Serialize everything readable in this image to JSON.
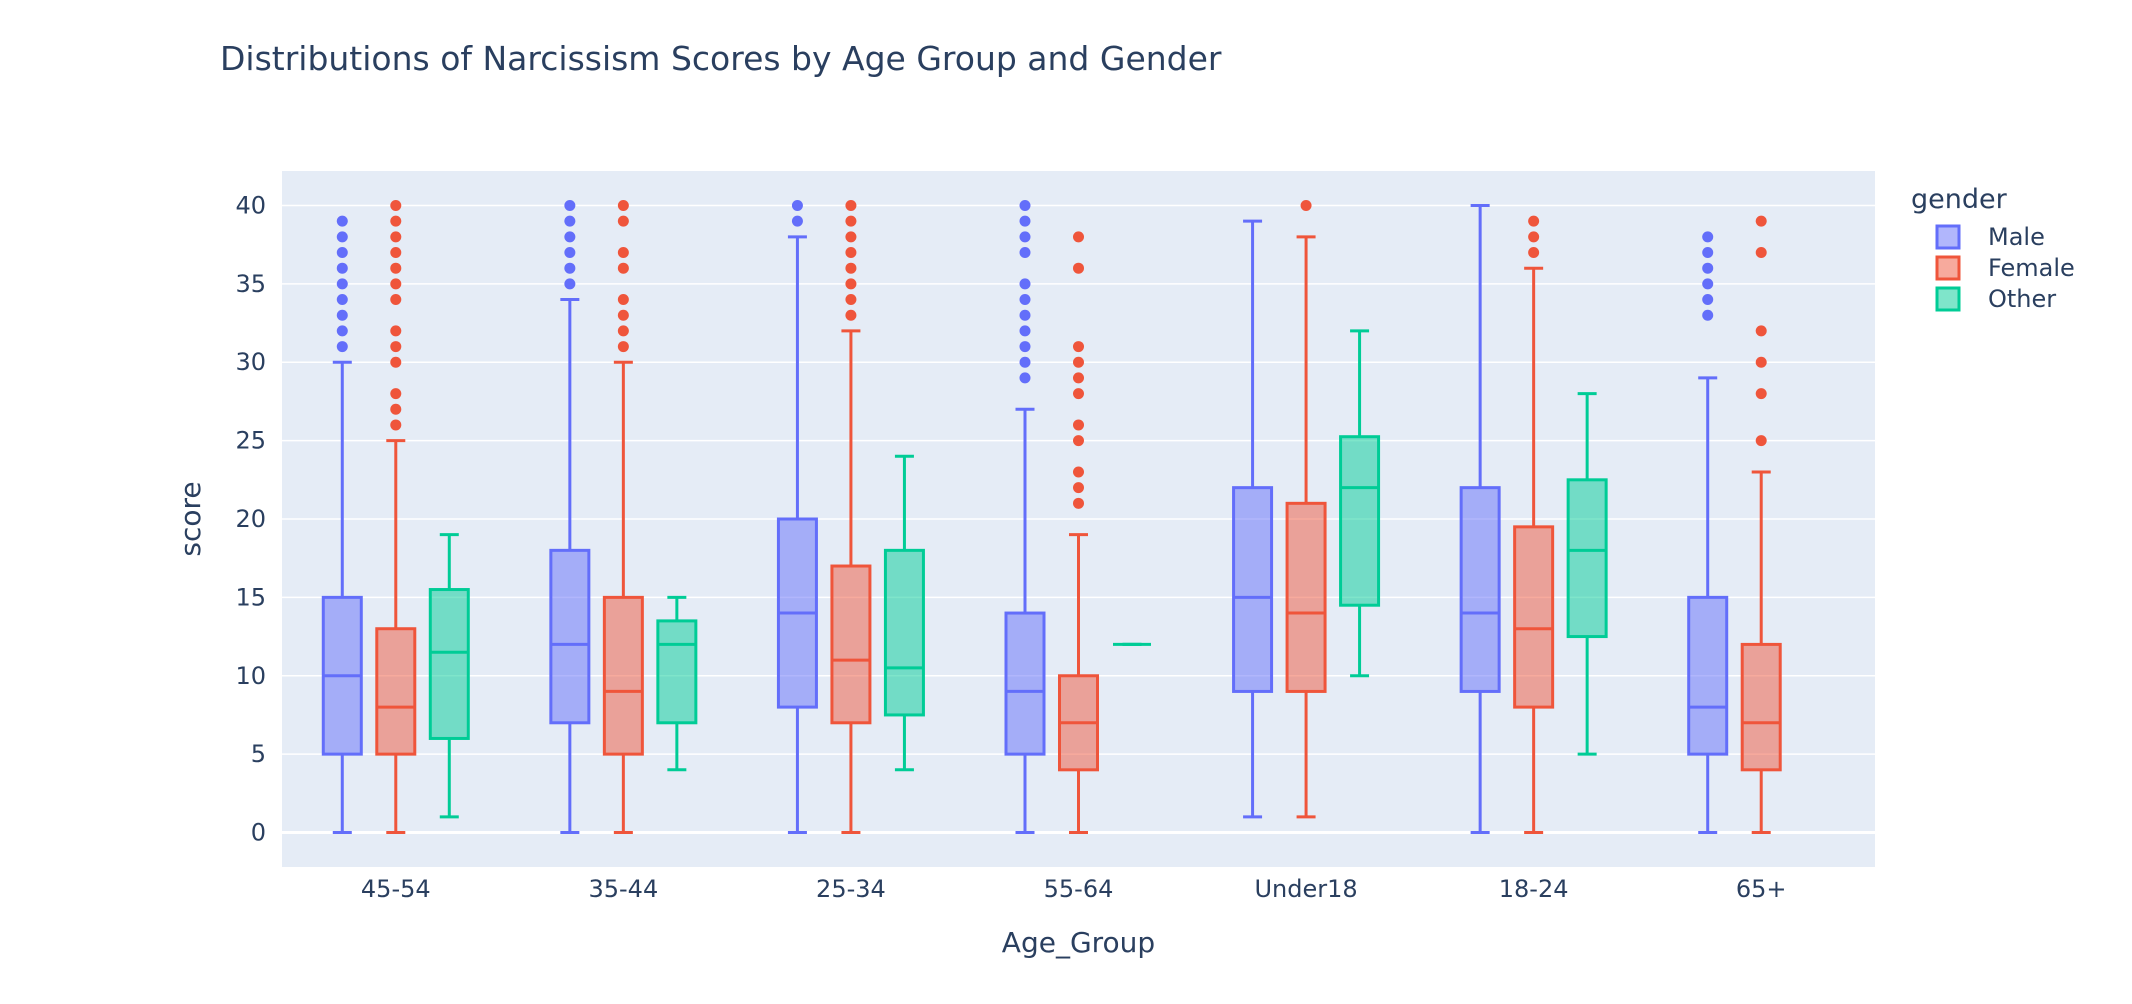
{
  "chart_data": {
    "type": "box",
    "title": "Distributions of Narcissism Scores by Age Group and Gender",
    "xlabel": "Age_Group",
    "ylabel": "score",
    "ylim": [
      -2.2,
      42.2
    ],
    "yticks": [
      0,
      5,
      10,
      15,
      20,
      25,
      30,
      35,
      40
    ],
    "grid": true,
    "legend_title": "gender",
    "legend_position": "right",
    "categories": [
      "45-54",
      "35-44",
      "25-34",
      "55-64",
      "Under18",
      "18-24",
      "65+"
    ],
    "series": [
      {
        "name": "Male",
        "color": "#636efa",
        "boxes": [
          {
            "category": "45-54",
            "lower_fence": 0,
            "q1": 5,
            "median": 10,
            "q3": 15,
            "upper_fence": 30,
            "outliers": [
              31,
              32,
              33,
              34,
              35,
              36,
              37,
              38,
              39
            ]
          },
          {
            "category": "35-44",
            "lower_fence": 0,
            "q1": 7,
            "median": 12,
            "q3": 18,
            "upper_fence": 34,
            "outliers": [
              35,
              36,
              37,
              38,
              39,
              40
            ]
          },
          {
            "category": "25-34",
            "lower_fence": 0,
            "q1": 8,
            "median": 14,
            "q3": 20,
            "upper_fence": 38,
            "outliers": [
              39,
              40
            ]
          },
          {
            "category": "55-64",
            "lower_fence": 0,
            "q1": 5,
            "median": 9,
            "q3": 14,
            "upper_fence": 27,
            "outliers": [
              29,
              30,
              31,
              32,
              33,
              34,
              35,
              37,
              38,
              39,
              40
            ]
          },
          {
            "category": "Under18",
            "lower_fence": 1,
            "q1": 9,
            "median": 15,
            "q3": 22,
            "upper_fence": 39,
            "outliers": []
          },
          {
            "category": "18-24",
            "lower_fence": 0,
            "q1": 9,
            "median": 14,
            "q3": 22,
            "upper_fence": 40,
            "outliers": []
          },
          {
            "category": "65+",
            "lower_fence": 0,
            "q1": 5,
            "median": 8,
            "q3": 15,
            "upper_fence": 29,
            "outliers": [
              33,
              34,
              35,
              36,
              37,
              38
            ]
          }
        ]
      },
      {
        "name": "Female",
        "color": "#ef553b",
        "boxes": [
          {
            "category": "45-54",
            "lower_fence": 0,
            "q1": 5,
            "median": 8,
            "q3": 13,
            "upper_fence": 25,
            "outliers": [
              26,
              27,
              28,
              30,
              31,
              32,
              34,
              35,
              36,
              37,
              38,
              39,
              40
            ]
          },
          {
            "category": "35-44",
            "lower_fence": 0,
            "q1": 5,
            "median": 9,
            "q3": 15,
            "upper_fence": 30,
            "outliers": [
              31,
              32,
              33,
              34,
              36,
              37,
              39,
              40
            ]
          },
          {
            "category": "25-34",
            "lower_fence": 0,
            "q1": 7,
            "median": 11,
            "q3": 17,
            "upper_fence": 32,
            "outliers": [
              33,
              34,
              35,
              36,
              37,
              38,
              39,
              40
            ]
          },
          {
            "category": "55-64",
            "lower_fence": 0,
            "q1": 4,
            "median": 7,
            "q3": 10,
            "upper_fence": 19,
            "outliers": [
              21,
              22,
              23,
              25,
              26,
              28,
              29,
              30,
              31,
              36,
              38
            ]
          },
          {
            "category": "Under18",
            "lower_fence": 1,
            "q1": 9,
            "median": 14,
            "q3": 21,
            "upper_fence": 38,
            "outliers": [
              40
            ]
          },
          {
            "category": "18-24",
            "lower_fence": 0,
            "q1": 8,
            "median": 13,
            "q3": 19.5,
            "upper_fence": 36,
            "outliers": [
              37,
              38,
              39
            ]
          },
          {
            "category": "65+",
            "lower_fence": 0,
            "q1": 4,
            "median": 7,
            "q3": 12,
            "upper_fence": 23,
            "outliers": [
              25,
              28,
              30,
              32,
              37,
              39
            ]
          }
        ]
      },
      {
        "name": "Other",
        "color": "#00cc96",
        "boxes": [
          {
            "category": "45-54",
            "lower_fence": 1,
            "q1": 6,
            "median": 11.5,
            "q3": 15.5,
            "upper_fence": 19,
            "outliers": []
          },
          {
            "category": "35-44",
            "lower_fence": 4,
            "q1": 7,
            "median": 12,
            "q3": 13.5,
            "upper_fence": 15,
            "outliers": []
          },
          {
            "category": "25-34",
            "lower_fence": 4,
            "q1": 7.5,
            "median": 10.5,
            "q3": 18,
            "upper_fence": 24,
            "outliers": []
          },
          {
            "category": "55-64",
            "lower_fence": 12,
            "q1": 12,
            "median": 12,
            "q3": 12,
            "upper_fence": 12,
            "outliers": []
          },
          {
            "category": "Under18",
            "lower_fence": 10,
            "q1": 14.5,
            "median": 22,
            "q3": 25.25,
            "upper_fence": 32,
            "outliers": []
          },
          {
            "category": "18-24",
            "lower_fence": 5,
            "q1": 12.5,
            "median": 18,
            "q3": 22.5,
            "upper_fence": 28,
            "outliers": []
          }
        ]
      }
    ]
  }
}
